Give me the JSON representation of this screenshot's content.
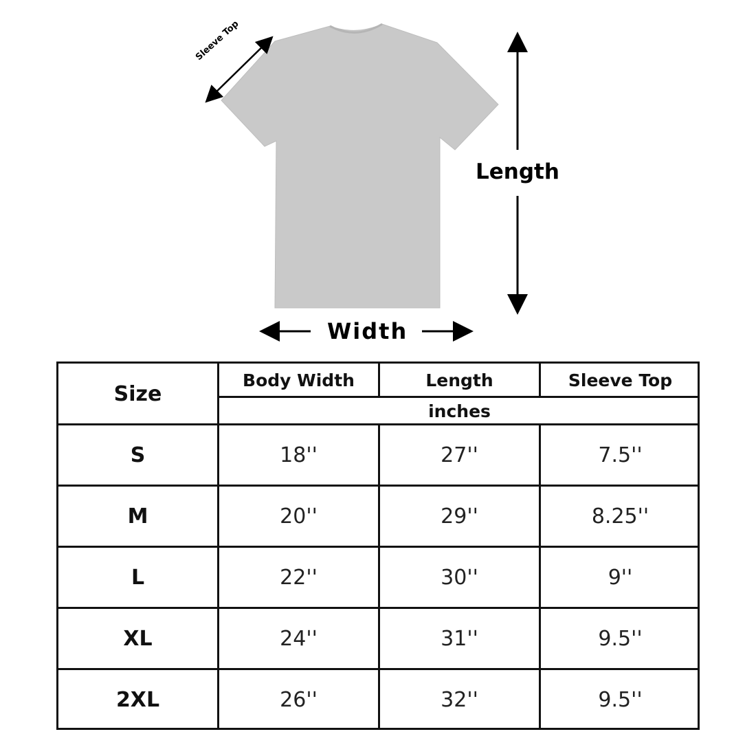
{
  "diagram": {
    "length_label": "Length",
    "width_label": "Width",
    "sleeve_label": "Sleeve Top",
    "shirt_color": "#c9c9c9"
  },
  "table": {
    "size_header": "Size",
    "columns": [
      "Body Width",
      "Length",
      "Sleeve Top"
    ],
    "unit": "inches",
    "rows": [
      {
        "size": "S",
        "values": [
          "18''",
          "27''",
          "7.5''"
        ]
      },
      {
        "size": "M",
        "values": [
          "20''",
          "29''",
          "8.25''"
        ]
      },
      {
        "size": "L",
        "values": [
          "22''",
          "30''",
          "9''"
        ]
      },
      {
        "size": "XL",
        "values": [
          "24''",
          "31''",
          "9.5''"
        ]
      },
      {
        "size": "2XL",
        "values": [
          "26''",
          "32''",
          "9.5''"
        ]
      }
    ]
  }
}
